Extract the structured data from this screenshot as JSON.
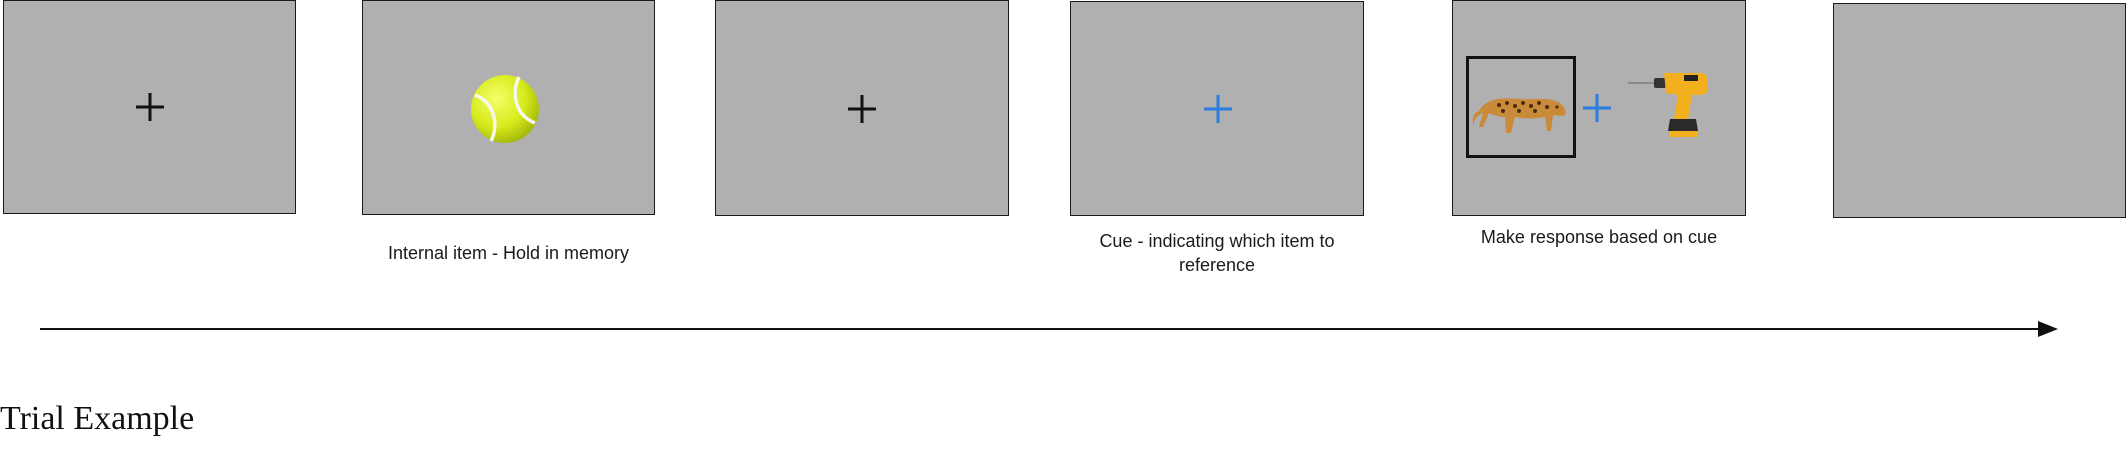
{
  "captions": {
    "internal_item": "Internal item - Hold in memory",
    "cue": "Cue - indicating which item to reference",
    "response": "Make response based on cue"
  },
  "title": "Trial Example",
  "fixation_symbol": "+",
  "colors": {
    "screen_bg": "#b0b0b0",
    "fixation": "#111111",
    "cue_fixation": "#2a7de1",
    "selection_box": "#111111"
  },
  "frames": [
    {
      "stimulus": "fixation"
    },
    {
      "stimulus": "tennis-ball"
    },
    {
      "stimulus": "fixation"
    },
    {
      "stimulus": "cue-fixation"
    },
    {
      "stimulus": "leopard-and-drill-with-cue"
    },
    {
      "stimulus": "blank"
    }
  ]
}
